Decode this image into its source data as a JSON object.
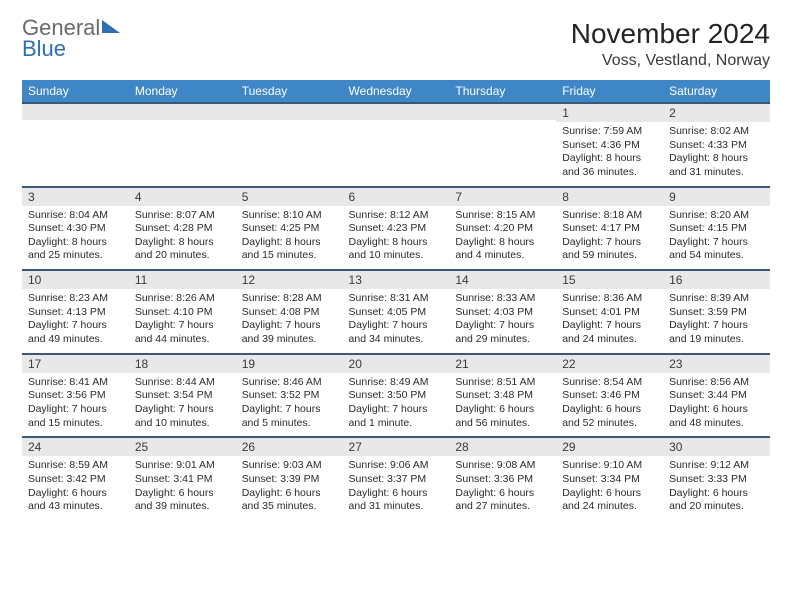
{
  "logo": {
    "word1": "General",
    "word2": "Blue"
  },
  "title": "November 2024",
  "location": "Voss, Vestland, Norway",
  "colors": {
    "header_bg": "#3e86c6",
    "header_text": "#ffffff",
    "daynum_bg": "#e8e8e8",
    "daynum_border": "#3a5878",
    "body_text": "#2b2b2b",
    "logo_gray": "#6a6a6a",
    "logo_blue": "#2e6fb0"
  },
  "dayHeaders": [
    "Sunday",
    "Monday",
    "Tuesday",
    "Wednesday",
    "Thursday",
    "Friday",
    "Saturday"
  ],
  "weeks": [
    [
      null,
      null,
      null,
      null,
      null,
      {
        "n": "1",
        "sr": "7:59 AM",
        "ss": "4:36 PM",
        "dl": "8 hours and 36 minutes."
      },
      {
        "n": "2",
        "sr": "8:02 AM",
        "ss": "4:33 PM",
        "dl": "8 hours and 31 minutes."
      }
    ],
    [
      {
        "n": "3",
        "sr": "8:04 AM",
        "ss": "4:30 PM",
        "dl": "8 hours and 25 minutes."
      },
      {
        "n": "4",
        "sr": "8:07 AM",
        "ss": "4:28 PM",
        "dl": "8 hours and 20 minutes."
      },
      {
        "n": "5",
        "sr": "8:10 AM",
        "ss": "4:25 PM",
        "dl": "8 hours and 15 minutes."
      },
      {
        "n": "6",
        "sr": "8:12 AM",
        "ss": "4:23 PM",
        "dl": "8 hours and 10 minutes."
      },
      {
        "n": "7",
        "sr": "8:15 AM",
        "ss": "4:20 PM",
        "dl": "8 hours and 4 minutes."
      },
      {
        "n": "8",
        "sr": "8:18 AM",
        "ss": "4:17 PM",
        "dl": "7 hours and 59 minutes."
      },
      {
        "n": "9",
        "sr": "8:20 AM",
        "ss": "4:15 PM",
        "dl": "7 hours and 54 minutes."
      }
    ],
    [
      {
        "n": "10",
        "sr": "8:23 AM",
        "ss": "4:13 PM",
        "dl": "7 hours and 49 minutes."
      },
      {
        "n": "11",
        "sr": "8:26 AM",
        "ss": "4:10 PM",
        "dl": "7 hours and 44 minutes."
      },
      {
        "n": "12",
        "sr": "8:28 AM",
        "ss": "4:08 PM",
        "dl": "7 hours and 39 minutes."
      },
      {
        "n": "13",
        "sr": "8:31 AM",
        "ss": "4:05 PM",
        "dl": "7 hours and 34 minutes."
      },
      {
        "n": "14",
        "sr": "8:33 AM",
        "ss": "4:03 PM",
        "dl": "7 hours and 29 minutes."
      },
      {
        "n": "15",
        "sr": "8:36 AM",
        "ss": "4:01 PM",
        "dl": "7 hours and 24 minutes."
      },
      {
        "n": "16",
        "sr": "8:39 AM",
        "ss": "3:59 PM",
        "dl": "7 hours and 19 minutes."
      }
    ],
    [
      {
        "n": "17",
        "sr": "8:41 AM",
        "ss": "3:56 PM",
        "dl": "7 hours and 15 minutes."
      },
      {
        "n": "18",
        "sr": "8:44 AM",
        "ss": "3:54 PM",
        "dl": "7 hours and 10 minutes."
      },
      {
        "n": "19",
        "sr": "8:46 AM",
        "ss": "3:52 PM",
        "dl": "7 hours and 5 minutes."
      },
      {
        "n": "20",
        "sr": "8:49 AM",
        "ss": "3:50 PM",
        "dl": "7 hours and 1 minute."
      },
      {
        "n": "21",
        "sr": "8:51 AM",
        "ss": "3:48 PM",
        "dl": "6 hours and 56 minutes."
      },
      {
        "n": "22",
        "sr": "8:54 AM",
        "ss": "3:46 PM",
        "dl": "6 hours and 52 minutes."
      },
      {
        "n": "23",
        "sr": "8:56 AM",
        "ss": "3:44 PM",
        "dl": "6 hours and 48 minutes."
      }
    ],
    [
      {
        "n": "24",
        "sr": "8:59 AM",
        "ss": "3:42 PM",
        "dl": "6 hours and 43 minutes."
      },
      {
        "n": "25",
        "sr": "9:01 AM",
        "ss": "3:41 PM",
        "dl": "6 hours and 39 minutes."
      },
      {
        "n": "26",
        "sr": "9:03 AM",
        "ss": "3:39 PM",
        "dl": "6 hours and 35 minutes."
      },
      {
        "n": "27",
        "sr": "9:06 AM",
        "ss": "3:37 PM",
        "dl": "6 hours and 31 minutes."
      },
      {
        "n": "28",
        "sr": "9:08 AM",
        "ss": "3:36 PM",
        "dl": "6 hours and 27 minutes."
      },
      {
        "n": "29",
        "sr": "9:10 AM",
        "ss": "3:34 PM",
        "dl": "6 hours and 24 minutes."
      },
      {
        "n": "30",
        "sr": "9:12 AM",
        "ss": "3:33 PM",
        "dl": "6 hours and 20 minutes."
      }
    ]
  ],
  "labels": {
    "sunrise": "Sunrise:",
    "sunset": "Sunset:",
    "daylight": "Daylight:"
  }
}
